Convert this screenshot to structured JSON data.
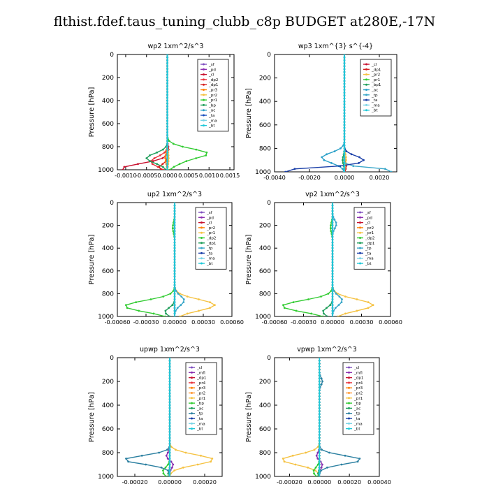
{
  "title": "flthist.fdef.taus_tuning_clubb_c8p  BUDGET at280E,-17N",
  "ylabel": "Pressure [hPa]",
  "ylim": [
    1000,
    0
  ],
  "yticks": [
    0,
    200,
    400,
    600,
    800,
    1000
  ],
  "levels": [
    0,
    25,
    50,
    75,
    100,
    125,
    150,
    175,
    200,
    225,
    250,
    275,
    300,
    325,
    350,
    375,
    400,
    425,
    450,
    475,
    500,
    525,
    550,
    575,
    600,
    625,
    650,
    675,
    700,
    725,
    750,
    775,
    800,
    825,
    850,
    875,
    900,
    925,
    950,
    975,
    1000
  ],
  "chart_data": [
    {
      "type": "line",
      "title": "wp2   1xm^2/s^3",
      "xlabel": "",
      "ylabel": "Pressure [hPa]",
      "xlim": [
        -0.0012,
        0.0016
      ],
      "xticks": [
        -0.001,
        -0.0005,
        0.0,
        0.0005,
        0.001,
        0.0015
      ],
      "xtick_labels": [
        "-0.0010",
        "-0.0005",
        "0.0000",
        "0.0005",
        "0.0010",
        "0.0015"
      ],
      "ylim": [
        1000,
        0
      ],
      "legend_position": "top-right",
      "series": [
        {
          "name": "_sf",
          "color": "#7f4fbf",
          "profile": {
            "base": 0.0,
            "peaks": []
          }
        },
        {
          "name": "_pd",
          "color": "#8b2fb0",
          "profile": {
            "base": 0.0,
            "peaks": []
          }
        },
        {
          "name": "_cl",
          "color": "#c8102e",
          "profile": {
            "base": 0.0,
            "peaks": [
              [
                990,
                -0.0011,
                60
              ],
              [
                820,
                3e-05,
                40
              ]
            ]
          }
        },
        {
          "name": "_dp2",
          "color": "#e8323c",
          "profile": {
            "base": 0.0,
            "peaks": [
              [
                930,
                -0.0004,
                60
              ]
            ]
          }
        },
        {
          "name": "_dp1",
          "color": "#d62020",
          "profile": {
            "base": 0.0,
            "peaks": [
              [
                980,
                -0.0002,
                40
              ]
            ]
          }
        },
        {
          "name": "_pr3",
          "color": "#ff7f00",
          "profile": {
            "base": 0.0,
            "peaks": [
              [
                900,
                -5e-05,
                60
              ]
            ]
          }
        },
        {
          "name": "_pr2",
          "color": "#f5c242",
          "profile": {
            "base": 0.0,
            "peaks": [
              [
                900,
                3e-05,
                80
              ]
            ]
          }
        },
        {
          "name": "_pr1",
          "color": "#33cc33",
          "profile": {
            "base": 0.0,
            "peaks": [
              [
                900,
                -0.0006,
                50
              ],
              [
                880,
                0.0014,
                70
              ]
            ]
          }
        },
        {
          "name": "_bp",
          "color": "#1f9e5a",
          "profile": {
            "base": 0.0,
            "peaks": [
              [
                900,
                -0.0005,
                60
              ]
            ]
          }
        },
        {
          "name": "_ac",
          "color": "#2aa0c8",
          "profile": {
            "base": 0.0,
            "peaks": []
          }
        },
        {
          "name": "_ta",
          "color": "#1a4fbf",
          "profile": {
            "base": 0.0,
            "peaks": []
          }
        },
        {
          "name": "_ma",
          "color": "#7ad4e6",
          "profile": {
            "base": 0.0,
            "peaks": []
          }
        },
        {
          "name": "_bt",
          "color": "#1ec8d8",
          "profile": {
            "base": 0.0,
            "peaks": []
          }
        }
      ]
    },
    {
      "type": "line",
      "title": "wp3   1xm^{3} s^{-4}",
      "xlabel": "",
      "ylabel": "Pressure [hPa]",
      "xlim": [
        -0.004,
        0.003
      ],
      "xticks": [
        -0.004,
        -0.002,
        0.0,
        0.002
      ],
      "xtick_labels": [
        "-0.0040",
        "-0.0020",
        "0.0000",
        "0.0020"
      ],
      "ylim": [
        1000,
        0
      ],
      "legend_position": "top-right",
      "series": [
        {
          "name": "_cl",
          "color": "#c8102e",
          "profile": {
            "base": 0.0,
            "peaks": []
          }
        },
        {
          "name": "_dp1",
          "color": "#d62020",
          "profile": {
            "base": 0.0,
            "peaks": [
              [
                950,
                0.0001,
                50
              ]
            ]
          }
        },
        {
          "name": "_pr2",
          "color": "#f5c242",
          "profile": {
            "base": 0.0,
            "peaks": [
              [
                890,
                0.0001,
                60
              ]
            ]
          }
        },
        {
          "name": "_pr1",
          "color": "#33cc33",
          "profile": {
            "base": 0.0,
            "peaks": [
              [
                900,
                -0.0001,
                50
              ]
            ]
          }
        },
        {
          "name": "_bp1",
          "color": "#1f9e5a",
          "profile": {
            "base": 0.0,
            "peaks": [
              [
                900,
                -0.0001,
                50
              ]
            ]
          }
        },
        {
          "name": "_ac",
          "color": "#2aa0c8",
          "profile": {
            "base": 0.0,
            "peaks": [
              [
                880,
                -0.0013,
                60
              ]
            ]
          }
        },
        {
          "name": "_tp",
          "color": "#3aa7c9",
          "profile": {
            "base": 0.0,
            "peaks": [
              [
                990,
                0.003,
                30
              ]
            ]
          }
        },
        {
          "name": "_ta",
          "color": "#1a3fa8",
          "profile": {
            "base": 0.0,
            "peaks": [
              [
                990,
                -0.0038,
                30
              ],
              [
                900,
                0.0011,
                50
              ]
            ]
          }
        },
        {
          "name": "_ma",
          "color": "#7ad4e6",
          "profile": {
            "base": 0.0,
            "peaks": []
          }
        },
        {
          "name": "_bt",
          "color": "#1ec8d8",
          "profile": {
            "base": 0.0,
            "peaks": []
          }
        }
      ]
    },
    {
      "type": "line",
      "title": "up2   1xm^2/s^3",
      "xlabel": "",
      "ylabel": "Pressure [hPa]",
      "xlim": [
        -0.0006,
        0.0006
      ],
      "xticks": [
        -0.0006,
        -0.0003,
        0.0,
        0.0003,
        0.0006
      ],
      "xtick_labels": [
        "-0.00060",
        "-0.00030",
        "0.00000",
        "0.00030",
        "0.00060"
      ],
      "ylim": [
        1000,
        0
      ],
      "legend_position": "top-right",
      "series": [
        {
          "name": "_sf",
          "color": "#7f4fbf",
          "profile": {
            "base": 0.0,
            "peaks": []
          }
        },
        {
          "name": "_pd",
          "color": "#8b2fb0",
          "profile": {
            "base": 0.0,
            "peaks": []
          }
        },
        {
          "name": "_cl",
          "color": "#c8102e",
          "profile": {
            "base": 0.0,
            "peaks": []
          }
        },
        {
          "name": "_pr2",
          "color": "#ff7f00",
          "profile": {
            "base": 0.0,
            "peaks": []
          }
        },
        {
          "name": "_pr1",
          "color": "#f5c242",
          "profile": {
            "base": 0.0,
            "peaks": [
              [
                900,
                0.00042,
                70
              ]
            ]
          }
        },
        {
          "name": "_dp2",
          "color": "#33cc33",
          "profile": {
            "base": 0.0,
            "peaks": [
              [
                220,
                -2e-05,
                60
              ],
              [
                910,
                -0.00052,
                70
              ]
            ]
          }
        },
        {
          "name": "_dp1",
          "color": "#1f9e5a",
          "profile": {
            "base": 0.0,
            "peaks": [
              [
                960,
                -0.0001,
                50
              ]
            ]
          }
        },
        {
          "name": "_tp",
          "color": "#3aa7c9",
          "profile": {
            "base": 0.0,
            "peaks": [
              [
                860,
                0.0001,
                60
              ]
            ]
          }
        },
        {
          "name": "_ta",
          "color": "#1a3fa8",
          "profile": {
            "base": 0.0,
            "peaks": []
          }
        },
        {
          "name": "_ma",
          "color": "#7ad4e6",
          "profile": {
            "base": 0.0,
            "peaks": []
          }
        },
        {
          "name": "_bt",
          "color": "#1ec8d8",
          "profile": {
            "base": 0.0,
            "peaks": []
          }
        }
      ]
    },
    {
      "type": "line",
      "title": "vp2   1xm^2/s^3",
      "xlabel": "",
      "ylabel": "Pressure [hPa]",
      "xlim": [
        -0.0006,
        0.0006
      ],
      "xticks": [
        -0.0006,
        -0.0003,
        0.0,
        0.0003,
        0.0006
      ],
      "xtick_labels": [
        "-0.00060",
        "-0.00030",
        "0.00000",
        "0.00030",
        "0.00060"
      ],
      "ylim": [
        1000,
        0
      ],
      "legend_position": "top-right",
      "series": [
        {
          "name": "_sf",
          "color": "#7f4fbf",
          "profile": {
            "base": 0.0,
            "peaks": []
          }
        },
        {
          "name": "_pd",
          "color": "#8b2fb0",
          "profile": {
            "base": 0.0,
            "peaks": []
          }
        },
        {
          "name": "_cl",
          "color": "#c8102e",
          "profile": {
            "base": 0.0,
            "peaks": []
          }
        },
        {
          "name": "_pr2",
          "color": "#ff7f00",
          "profile": {
            "base": 0.0,
            "peaks": []
          }
        },
        {
          "name": "_pr1",
          "color": "#f5c242",
          "profile": {
            "base": 0.0,
            "peaks": [
              [
                900,
                0.00042,
                70
              ]
            ]
          }
        },
        {
          "name": "_dp2",
          "color": "#33cc33",
          "profile": {
            "base": 0.0,
            "peaks": [
              [
                220,
                -2e-05,
                60
              ],
              [
                910,
                -0.00052,
                70
              ]
            ]
          }
        },
        {
          "name": "_dp1",
          "color": "#1f9e5a",
          "profile": {
            "base": 0.0,
            "peaks": [
              [
                960,
                -0.0001,
                50
              ]
            ]
          }
        },
        {
          "name": "_tp",
          "color": "#3aa7c9",
          "profile": {
            "base": 0.0,
            "peaks": [
              [
                190,
                4e-05,
                50
              ],
              [
                860,
                0.0001,
                60
              ]
            ]
          }
        },
        {
          "name": "_ta",
          "color": "#1a3fa8",
          "profile": {
            "base": 0.0,
            "peaks": []
          }
        },
        {
          "name": "_ma",
          "color": "#7ad4e6",
          "profile": {
            "base": 0.0,
            "peaks": []
          }
        },
        {
          "name": "_bt",
          "color": "#1ec8d8",
          "profile": {
            "base": 0.0,
            "peaks": []
          }
        }
      ]
    },
    {
      "type": "line",
      "title": "upwp   1xm^2/s^3",
      "xlabel": "",
      "ylabel": "Pressure [hPa]",
      "xlim": [
        -0.0003,
        0.0003
      ],
      "xticks": [
        -0.0002,
        0.0,
        0.0002
      ],
      "xtick_labels": [
        "-0.00020",
        "0.00000",
        "0.00020"
      ],
      "ylim": [
        1000,
        0
      ],
      "legend_position": "top-right",
      "series": [
        {
          "name": "_cl",
          "color": "#7f4fbf",
          "profile": {
            "base": 0.0,
            "peaks": []
          }
        },
        {
          "name": "_mfl",
          "color": "#8b2fb0",
          "profile": {
            "base": 0.0,
            "peaks": [
              [
                830,
                -2e-05,
                40
              ],
              [
                900,
                2e-05,
                40
              ]
            ]
          }
        },
        {
          "name": "_dp1",
          "color": "#c8102e",
          "profile": {
            "base": 0.0,
            "peaks": []
          }
        },
        {
          "name": "_pr4",
          "color": "#e8323c",
          "profile": {
            "base": 0.0,
            "peaks": []
          }
        },
        {
          "name": "_pr3",
          "color": "#ff7f00",
          "profile": {
            "base": 0.0,
            "peaks": []
          }
        },
        {
          "name": "_pr2",
          "color": "#ff9933",
          "profile": {
            "base": 0.0,
            "peaks": []
          }
        },
        {
          "name": "_pr1",
          "color": "#f5c242",
          "profile": {
            "base": 0.0,
            "peaks": [
              [
                860,
                0.00025,
                60
              ]
            ]
          }
        },
        {
          "name": "_bp",
          "color": "#33cc33",
          "profile": {
            "base": 0.0,
            "peaks": [
              [
                960,
                -4e-05,
                50
              ]
            ]
          }
        },
        {
          "name": "_ac",
          "color": "#1f9e5a",
          "profile": {
            "base": 0.0,
            "peaks": [
              [
                990,
                -1e-05,
                40
              ]
            ]
          }
        },
        {
          "name": "_tp",
          "color": "#2a7fa0",
          "profile": {
            "base": 0.0,
            "peaks": [
              [
                860,
                -0.00026,
                50
              ]
            ]
          }
        },
        {
          "name": "_ta",
          "color": "#1a3fa8",
          "profile": {
            "base": 0.0,
            "peaks": []
          }
        },
        {
          "name": "_ma",
          "color": "#7ad4e6",
          "profile": {
            "base": 0.0,
            "peaks": []
          }
        },
        {
          "name": "_bt",
          "color": "#1ec8d8",
          "profile": {
            "base": 0.0,
            "peaks": []
          }
        }
      ]
    },
    {
      "type": "line",
      "title": "vpwp   1xm^2/s^3",
      "xlabel": "",
      "ylabel": "Pressure [hPa]",
      "xlim": [
        -0.0003,
        0.0004
      ],
      "xticks": [
        -0.0002,
        0.0,
        0.0002,
        0.0004
      ],
      "xtick_labels": [
        "-0.00020",
        "0.00000",
        "0.00020",
        "0.00040"
      ],
      "ylim": [
        1000,
        0
      ],
      "legend_position": "top-right",
      "series": [
        {
          "name": "_cl",
          "color": "#7f4fbf",
          "profile": {
            "base": 0.0,
            "peaks": []
          }
        },
        {
          "name": "_mfl",
          "color": "#8b2fb0",
          "profile": {
            "base": 0.0,
            "peaks": [
              [
                830,
                -2e-05,
                40
              ],
              [
                900,
                2e-05,
                40
              ]
            ]
          }
        },
        {
          "name": "_dp1",
          "color": "#c8102e",
          "profile": {
            "base": 0.0,
            "peaks": []
          }
        },
        {
          "name": "_pr4",
          "color": "#e8323c",
          "profile": {
            "base": 0.0,
            "peaks": []
          }
        },
        {
          "name": "_pr3",
          "color": "#ff7f00",
          "profile": {
            "base": 0.0,
            "peaks": []
          }
        },
        {
          "name": "_pr2",
          "color": "#ff9933",
          "profile": {
            "base": 0.0,
            "peaks": []
          }
        },
        {
          "name": "_pr1",
          "color": "#f5c242",
          "profile": {
            "base": 0.0,
            "peaks": [
              [
                860,
                -0.00025,
                60
              ]
            ]
          }
        },
        {
          "name": "_bp",
          "color": "#33cc33",
          "profile": {
            "base": 0.0,
            "peaks": [
              [
                960,
                -4e-05,
                50
              ]
            ]
          }
        },
        {
          "name": "_ac",
          "color": "#1f9e5a",
          "profile": {
            "base": 0.0,
            "peaks": [
              [
                990,
                -1e-05,
                40
              ]
            ]
          }
        },
        {
          "name": "_tp",
          "color": "#2a7fa0",
          "profile": {
            "base": 0.0,
            "peaks": [
              [
                200,
                2e-05,
                40
              ],
              [
                860,
                0.00028,
                50
              ]
            ]
          }
        },
        {
          "name": "_ta",
          "color": "#1a3fa8",
          "profile": {
            "base": 0.0,
            "peaks": []
          }
        },
        {
          "name": "_ma",
          "color": "#7ad4e6",
          "profile": {
            "base": 0.0,
            "peaks": []
          }
        },
        {
          "name": "_bt",
          "color": "#1ec8d8",
          "profile": {
            "base": 0.0,
            "peaks": []
          }
        }
      ]
    }
  ]
}
